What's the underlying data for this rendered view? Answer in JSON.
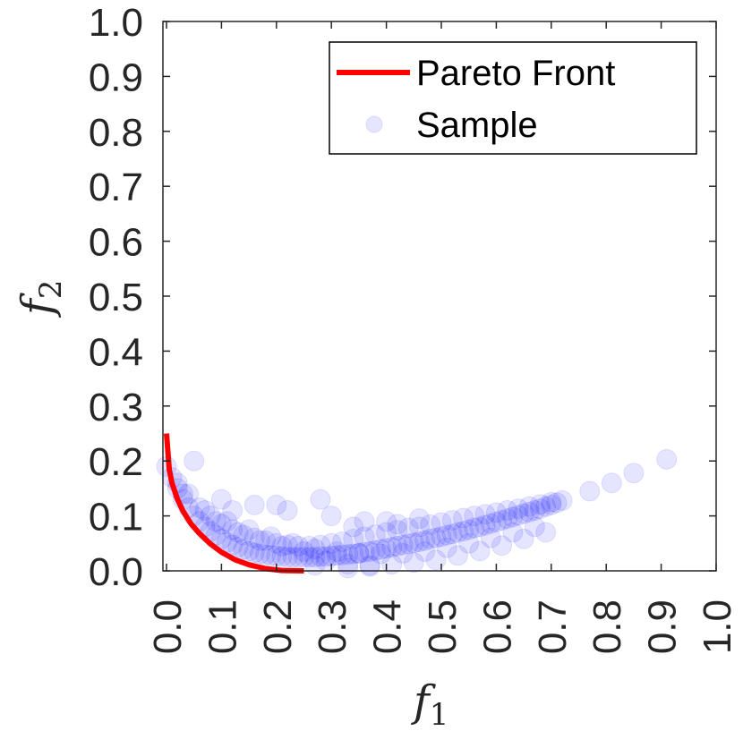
{
  "chart_data": {
    "type": "scatter",
    "xlabel": "f",
    "xlabel_sub": "1",
    "ylabel": "f",
    "ylabel_sub": "2",
    "xlim": [
      0,
      1
    ],
    "ylim": [
      0,
      1
    ],
    "x_ticks": [
      "0.0",
      "0.1",
      "0.2",
      "0.3",
      "0.4",
      "0.5",
      "0.6",
      "0.7",
      "0.8",
      "0.9",
      "1.0"
    ],
    "y_ticks": [
      "0.0",
      "0.1",
      "0.2",
      "0.3",
      "0.4",
      "0.5",
      "0.6",
      "0.7",
      "0.8",
      "0.9",
      "1.0"
    ],
    "grid": false,
    "legend_position": "top-right",
    "series": [
      {
        "name": "Pareto Front",
        "kind": "line",
        "color": "#ff0000",
        "x": [
          0.0,
          0.005,
          0.01,
          0.02,
          0.03,
          0.045,
          0.06,
          0.08,
          0.1,
          0.125,
          0.15,
          0.18,
          0.21,
          0.25
        ],
        "y": [
          0.25,
          0.184,
          0.16,
          0.13,
          0.109,
          0.085,
          0.068,
          0.049,
          0.034,
          0.02,
          0.011,
          0.004,
          0.0006,
          0.0
        ]
      },
      {
        "name": "Sample",
        "kind": "scatter",
        "color": "#0000ff",
        "opacity": 0.1,
        "x": [
          0.0,
          0.01,
          0.02,
          0.03,
          0.04,
          0.05,
          0.06,
          0.07,
          0.08,
          0.09,
          0.1,
          0.11,
          0.12,
          0.13,
          0.14,
          0.15,
          0.16,
          0.17,
          0.18,
          0.19,
          0.2,
          0.21,
          0.22,
          0.23,
          0.24,
          0.25,
          0.26,
          0.27,
          0.28,
          0.29,
          0.3,
          0.31,
          0.32,
          0.33,
          0.34,
          0.35,
          0.36,
          0.37,
          0.38,
          0.39,
          0.4,
          0.41,
          0.42,
          0.43,
          0.44,
          0.45,
          0.46,
          0.47,
          0.48,
          0.49,
          0.5,
          0.51,
          0.52,
          0.53,
          0.54,
          0.55,
          0.56,
          0.57,
          0.58,
          0.59,
          0.6,
          0.61,
          0.62,
          0.63,
          0.64,
          0.65,
          0.66,
          0.67,
          0.68,
          0.69,
          0.7,
          0.71,
          0.72,
          0.77,
          0.81,
          0.85,
          0.91,
          0.02,
          0.04,
          0.06,
          0.08,
          0.1,
          0.12,
          0.14,
          0.16,
          0.18,
          0.2,
          0.22,
          0.24,
          0.26,
          0.28,
          0.3,
          0.32,
          0.34,
          0.36,
          0.38,
          0.4,
          0.42,
          0.44,
          0.46,
          0.48,
          0.5,
          0.52,
          0.54,
          0.56,
          0.58,
          0.6,
          0.62,
          0.64,
          0.66,
          0.68,
          0.7,
          0.03,
          0.07,
          0.11,
          0.15,
          0.19,
          0.23,
          0.27,
          0.31,
          0.35,
          0.39,
          0.43,
          0.47,
          0.51,
          0.55,
          0.59,
          0.63,
          0.67,
          0.09,
          0.13,
          0.17,
          0.21,
          0.25,
          0.29,
          0.33,
          0.37,
          0.41,
          0.45,
          0.49,
          0.53,
          0.57,
          0.61,
          0.65,
          0.69,
          0.05,
          0.12,
          0.2,
          0.28,
          0.34,
          0.4,
          0.46,
          0.1,
          0.16,
          0.22,
          0.3,
          0.36,
          0.42,
          0.27,
          0.33,
          0.37
        ],
        "y": [
          0.19,
          0.17,
          0.15,
          0.13,
          0.115,
          0.1,
          0.09,
          0.08,
          0.072,
          0.065,
          0.058,
          0.052,
          0.047,
          0.043,
          0.039,
          0.036,
          0.033,
          0.031,
          0.029,
          0.028,
          0.027,
          0.026,
          0.025,
          0.025,
          0.025,
          0.025,
          0.025,
          0.025,
          0.026,
          0.026,
          0.027,
          0.028,
          0.029,
          0.03,
          0.031,
          0.032,
          0.034,
          0.035,
          0.037,
          0.039,
          0.041,
          0.043,
          0.045,
          0.047,
          0.049,
          0.051,
          0.053,
          0.055,
          0.058,
          0.06,
          0.062,
          0.065,
          0.067,
          0.07,
          0.072,
          0.075,
          0.078,
          0.08,
          0.083,
          0.086,
          0.089,
          0.092,
          0.095,
          0.098,
          0.101,
          0.104,
          0.107,
          0.11,
          0.113,
          0.117,
          0.12,
          0.124,
          0.128,
          0.145,
          0.16,
          0.178,
          0.203,
          0.16,
          0.14,
          0.115,
          0.1,
          0.085,
          0.075,
          0.065,
          0.06,
          0.055,
          0.05,
          0.047,
          0.045,
          0.045,
          0.047,
          0.05,
          0.053,
          0.058,
          0.062,
          0.066,
          0.07,
          0.074,
          0.078,
          0.08,
          0.084,
          0.088,
          0.092,
          0.096,
          0.1,
          0.103,
          0.106,
          0.11,
          0.113,
          0.117,
          0.121,
          0.125,
          0.14,
          0.11,
          0.09,
          0.075,
          0.062,
          0.05,
          0.04,
          0.035,
          0.032,
          0.031,
          0.032,
          0.035,
          0.042,
          0.05,
          0.06,
          0.07,
          0.08,
          0.09,
          0.07,
          0.055,
          0.045,
          0.035,
          0.018,
          0.012,
          0.01,
          0.012,
          0.015,
          0.02,
          0.028,
          0.036,
          0.046,
          0.058,
          0.07,
          0.2,
          0.11,
          0.12,
          0.13,
          0.08,
          0.09,
          0.095,
          0.13,
          0.12,
          0.11,
          0.1,
          0.09,
          0.085,
          0.01,
          0.005,
          0.008
        ]
      }
    ]
  }
}
